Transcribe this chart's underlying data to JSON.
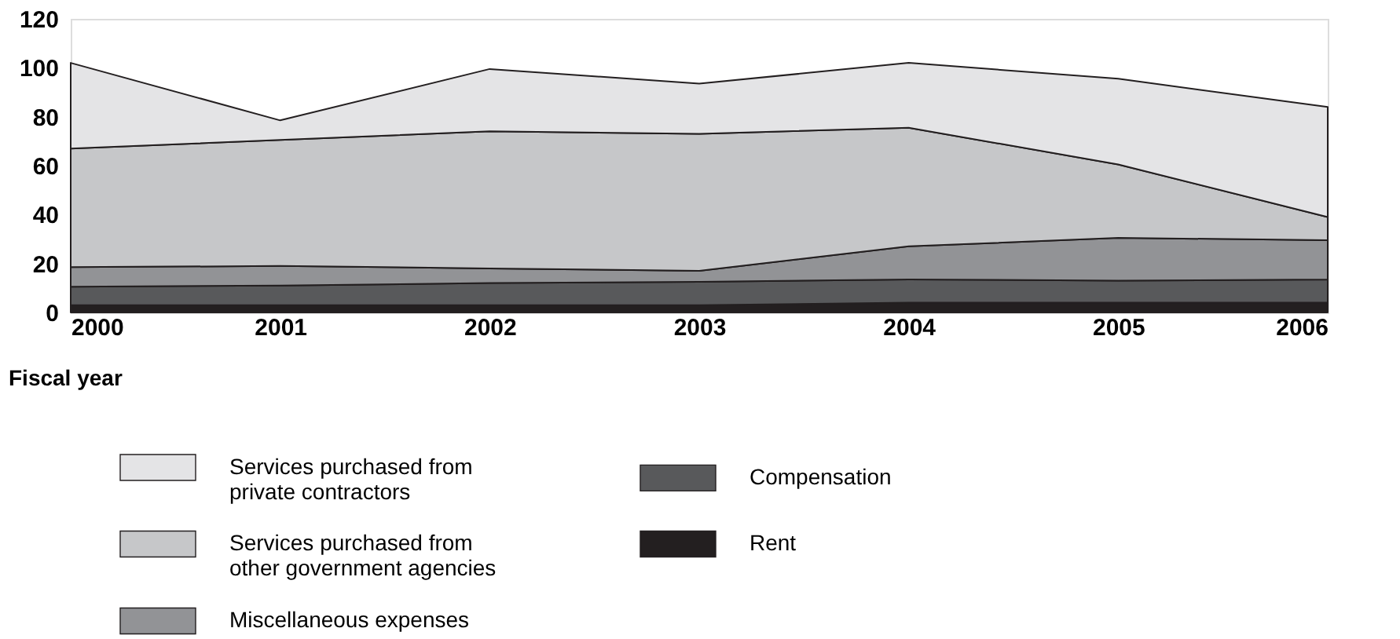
{
  "chart_data": {
    "type": "area",
    "stacked": true,
    "xlabel": "Fiscal year",
    "x": [
      2000,
      2001,
      2002,
      2003,
      2004,
      2005,
      2006
    ],
    "xlim": [
      2000,
      2006
    ],
    "xticks": [
      2000,
      2001,
      2002,
      2003,
      2004,
      2005,
      2006
    ],
    "ylim": [
      0,
      120
    ],
    "yticks": [
      0,
      20,
      40,
      60,
      80,
      100,
      120
    ],
    "grid": false,
    "legend": "bottom left",
    "series": [
      {
        "name": "Rent",
        "color": "#231f20",
        "values": [
          3,
          3,
          3,
          3,
          4,
          4,
          4
        ]
      },
      {
        "name": "Compensation",
        "color": "#58595b",
        "values": [
          7.5,
          8,
          9,
          9.5,
          9.5,
          9,
          9.5
        ]
      },
      {
        "name": "Miscellaneous expenses",
        "color": "#929396",
        "values": [
          8,
          8,
          6,
          4.5,
          13.5,
          17.5,
          16
        ]
      },
      {
        "name": "Services purchased from other government agencies",
        "color": "#c6c7c9",
        "values": [
          48.5,
          51.5,
          56,
          56,
          48.5,
          30,
          9.5
        ]
      },
      {
        "name": "Services purchased from private contractors",
        "color": "#e4e4e6",
        "values": [
          35,
          8,
          25.5,
          20.5,
          26.5,
          35,
          45
        ]
      }
    ]
  }
}
